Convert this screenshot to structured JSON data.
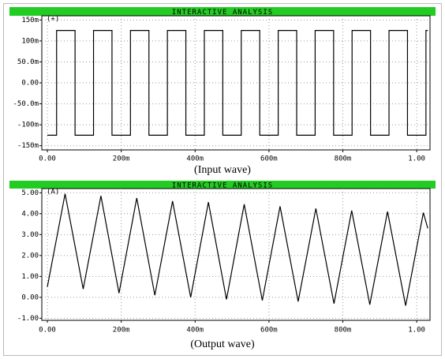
{
  "chart_data": [
    {
      "type": "line",
      "title": "INTERACTIVE ANALYSIS",
      "caption": "(Input wave)",
      "grid": true,
      "xlim": [
        -0.015,
        1.036
      ],
      "ylim": [
        -0.16,
        0.16
      ],
      "xticks": [
        {
          "value": 0,
          "label": "0.00"
        },
        {
          "value": 0.2,
          "label": "200m"
        },
        {
          "value": 0.4,
          "label": "400m"
        },
        {
          "value": 0.6,
          "label": "600m"
        },
        {
          "value": 0.8,
          "label": "800m"
        },
        {
          "value": 1,
          "label": "1.00"
        }
      ],
      "yticks": [
        {
          "value": 0.15,
          "label": "150m"
        },
        {
          "value": 0.1,
          "label": "100m"
        },
        {
          "value": 0.05,
          "label": "50.0m"
        },
        {
          "value": 0,
          "label": "0.00"
        },
        {
          "value": -0.05,
          "label": "-50.0m"
        },
        {
          "value": -0.1,
          "label": "-100m"
        },
        {
          "value": -0.15,
          "label": "-150m"
        }
      ],
      "series": [
        {
          "name": "(+)",
          "color": "#000000",
          "x": [
            0,
            0.025,
            0.025,
            0.075,
            0.075,
            0.125,
            0.125,
            0.175,
            0.175,
            0.225,
            0.225,
            0.275,
            0.275,
            0.325,
            0.325,
            0.375,
            0.375,
            0.425,
            0.425,
            0.475,
            0.475,
            0.525,
            0.525,
            0.575,
            0.575,
            0.625,
            0.625,
            0.675,
            0.675,
            0.725,
            0.725,
            0.775,
            0.775,
            0.825,
            0.825,
            0.875,
            0.875,
            0.925,
            0.925,
            0.975,
            0.975,
            1.025,
            1.025,
            1.03
          ],
          "values": [
            -0.125,
            -0.125,
            0.125,
            0.125,
            -0.125,
            -0.125,
            0.125,
            0.125,
            -0.125,
            -0.125,
            0.125,
            0.125,
            -0.125,
            -0.125,
            0.125,
            0.125,
            -0.125,
            -0.125,
            0.125,
            0.125,
            -0.125,
            -0.125,
            0.125,
            0.125,
            -0.125,
            -0.125,
            0.125,
            0.125,
            -0.125,
            -0.125,
            0.125,
            0.125,
            -0.125,
            -0.125,
            0.125,
            0.125,
            -0.125,
            -0.125,
            0.125,
            0.125,
            -0.125,
            -0.125,
            0.125,
            0.125
          ]
        }
      ]
    },
    {
      "type": "line",
      "title": "INTERACTIVE ANALYSIS",
      "caption": "(Output wave)",
      "grid": true,
      "xlim": [
        -0.015,
        1.036
      ],
      "ylim": [
        -1.1,
        5.2
      ],
      "xticks": [
        {
          "value": 0,
          "label": "0.00"
        },
        {
          "value": 0.2,
          "label": "200m"
        },
        {
          "value": 0.4,
          "label": "400m"
        },
        {
          "value": 0.6,
          "label": "600m"
        },
        {
          "value": 0.8,
          "label": "800m"
        },
        {
          "value": 1,
          "label": "1.00"
        }
      ],
      "yticks": [
        {
          "value": 5,
          "label": "5.00"
        },
        {
          "value": 4,
          "label": "4.00"
        },
        {
          "value": 3,
          "label": "3.00"
        },
        {
          "value": 2,
          "label": "2.00"
        },
        {
          "value": 1,
          "label": "1.00"
        },
        {
          "value": 0,
          "label": "0.00"
        },
        {
          "value": -1,
          "label": "-1.00"
        }
      ],
      "series": [
        {
          "name": "(A)",
          "color": "#000000",
          "x": [
            0,
            0.048,
            0.097,
            0.145,
            0.194,
            0.242,
            0.291,
            0.339,
            0.388,
            0.436,
            0.485,
            0.533,
            0.582,
            0.63,
            0.679,
            0.727,
            0.776,
            0.824,
            0.873,
            0.921,
            0.97,
            1.018,
            1.03
          ],
          "values": [
            0.5,
            4.95,
            0.4,
            4.85,
            0.2,
            4.75,
            0.1,
            4.6,
            0.0,
            4.55,
            -0.1,
            4.45,
            -0.15,
            4.35,
            -0.2,
            4.25,
            -0.3,
            4.15,
            -0.35,
            4.1,
            -0.4,
            4.05,
            3.3
          ]
        }
      ]
    }
  ]
}
